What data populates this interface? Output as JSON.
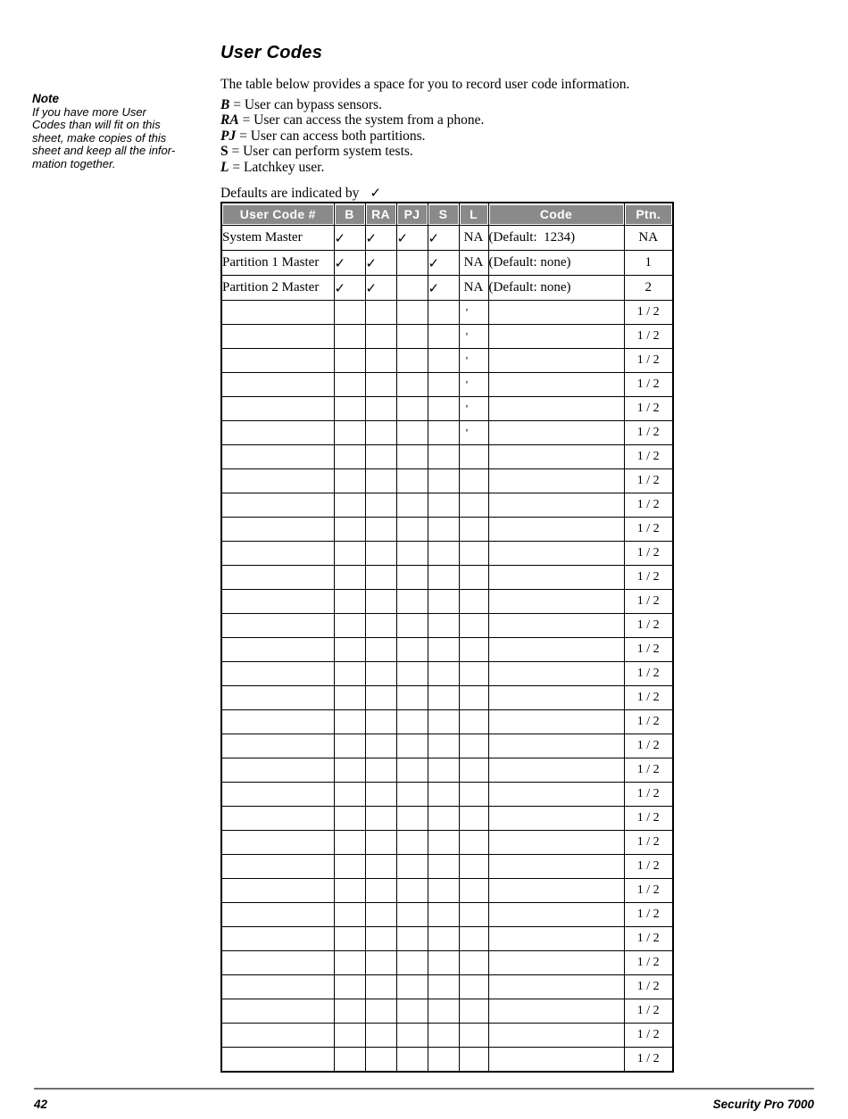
{
  "main": {
    "title": "User Codes",
    "intro": "The table below provides a space for you to record user code information.",
    "legend": [
      {
        "key": "B",
        "rest": " = User can bypass sensors."
      },
      {
        "key": "RA",
        "rest": " = User can access the system from a phone."
      },
      {
        "key": "PJ",
        "rest": " = User can access both partitions."
      },
      {
        "key": "S",
        "rest": " = User can perform system tests."
      },
      {
        "key": "L",
        "rest": " = Latchkey user."
      }
    ],
    "defaults_text": "Defaults are indicated by",
    "checkmark": "✓"
  },
  "note": {
    "title": "Note",
    "lines": [
      "If you have more User",
      "Codes than will fit on this",
      "sheet, make copies of this",
      "sheet and keep all the infor-",
      "mation together."
    ]
  },
  "table": {
    "headers": [
      "User Code #",
      "B",
      "RA",
      "PJ",
      "S",
      "L",
      "Code",
      "Ptn."
    ],
    "named_rows": [
      {
        "name": "System Master",
        "b": "✓",
        "ra": "✓",
        "pj": "✓",
        "s": "✓",
        "l": "NA",
        "code": "(Default:  1234)",
        "ptn": "NA"
      },
      {
        "name": "Partition 1 Master",
        "b": "✓",
        "ra": "✓",
        "pj": "",
        "s": "✓",
        "l": "NA",
        "code": "(Default: none)",
        "ptn": "1"
      },
      {
        "name": "Partition 2 Master",
        "b": "✓",
        "ra": "✓",
        "pj": "",
        "s": "✓",
        "l": "NA",
        "code": "(Default: none)",
        "ptn": "2"
      }
    ],
    "blank_row_count": 32,
    "comma_mark_rows": 6,
    "comma_mark": ",",
    "blank_ptn": "1 / 2"
  },
  "footer": {
    "page_number": "42",
    "product_name": "Security Pro 7000"
  },
  "colors": {
    "header_bg": "#8a8a8a",
    "header_text": "#ffffff",
    "table_border": "#000000",
    "footer_rule": "#6f6f6f"
  }
}
